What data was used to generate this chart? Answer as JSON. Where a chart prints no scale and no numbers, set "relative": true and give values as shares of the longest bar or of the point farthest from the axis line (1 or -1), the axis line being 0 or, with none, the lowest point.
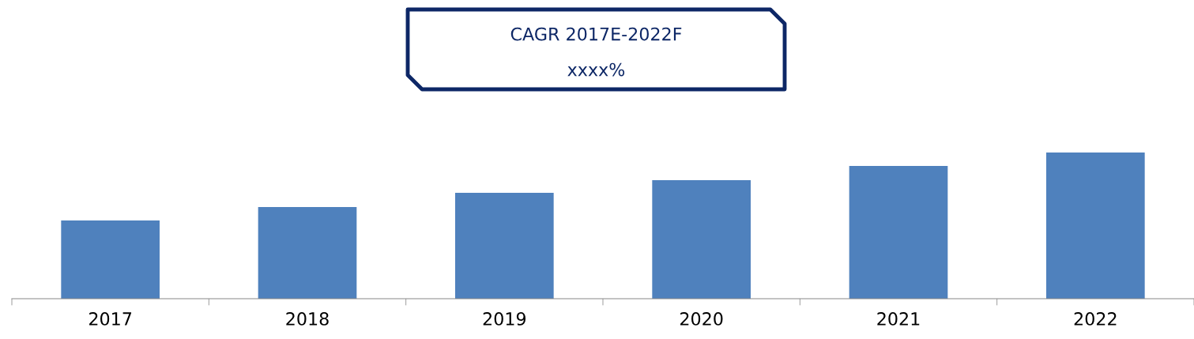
{
  "chart_data": {
    "type": "bar",
    "relative": true,
    "categories": [
      "2017",
      "2018",
      "2019",
      "2020",
      "2021",
      "2022"
    ],
    "values": [
      0.535,
      0.627,
      0.724,
      0.811,
      0.908,
      1
    ],
    "color": "#4f81bd",
    "annotations": [
      "CAGR 2017E-2022F",
      "xxxx%"
    ],
    "grid": false,
    "legend": false
  }
}
